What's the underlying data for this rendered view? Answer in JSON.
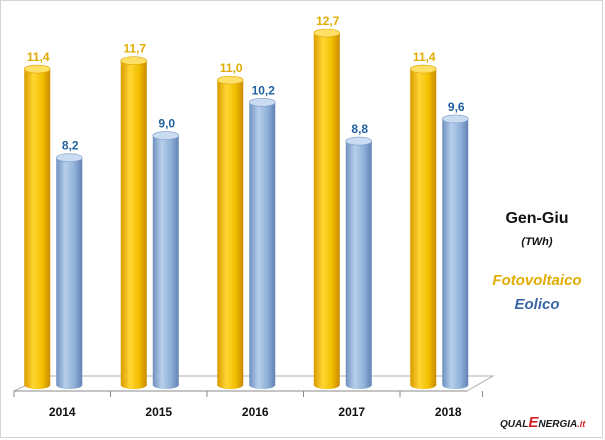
{
  "chart_data": {
    "type": "bar",
    "categories": [
      "2014",
      "2015",
      "2016",
      "2017",
      "2018"
    ],
    "series": [
      {
        "name": "Fotovoltaico",
        "values": [
          11.4,
          11.7,
          11.0,
          12.7,
          11.4
        ],
        "labels": [
          "11,4",
          "11,7",
          "11,0",
          "12,7",
          "11,4"
        ],
        "color": "#f2bf00",
        "label_color": "#e0ac00"
      },
      {
        "name": "Eolico",
        "values": [
          8.2,
          9.0,
          10.2,
          8.8,
          9.6
        ],
        "labels": [
          "8,2",
          "9,0",
          "10,2",
          "8,8",
          "9,6"
        ],
        "color": "#8fb0d8",
        "label_color": "#2060a0"
      }
    ],
    "ylim": [
      0,
      12.7
    ],
    "grid": false,
    "title": "Gen-Giu",
    "unit": "(TWh)",
    "legend_placement": "right",
    "xlabel": "",
    "ylabel": ""
  },
  "brand": {
    "part1": "QUAL",
    "part2": "E",
    "part3": "NERGIA",
    "part4": ".it"
  },
  "colors": {
    "background": "#ffffff",
    "floor": "#ffffff",
    "floor_edge": "#b0b0b0"
  }
}
